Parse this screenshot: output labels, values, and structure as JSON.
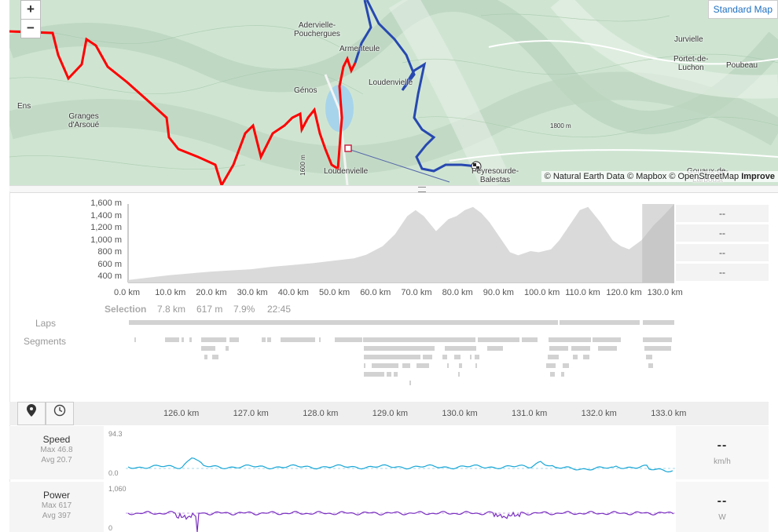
{
  "map": {
    "zoom_in": "+",
    "zoom_out": "−",
    "style_button": "Standard Map",
    "attribution": "© Natural Earth Data © Mapbox © OpenStreetMap",
    "attribution_link": "Improve",
    "places": [
      {
        "name": "Adervielle-\nPouchergues"
      },
      {
        "name": "Armenteule"
      },
      {
        "name": "Loudenvielle"
      },
      {
        "name": "Génos"
      },
      {
        "name": "Loudenvielle"
      },
      {
        "name": "Peyresourde-\nBalestas"
      },
      {
        "name": "Granges\nd'Arsoué"
      },
      {
        "name": "Ens"
      },
      {
        "name": "Jurvielle"
      },
      {
        "name": "Portet-de-\nLuchon"
      },
      {
        "name": "Poubeau"
      },
      {
        "name": "Gouaux-de-\nLarboust"
      },
      {
        "name": "1600 m"
      },
      {
        "name": "1800 m"
      }
    ]
  },
  "elevation": {
    "y_ticks": [
      "1,600 m",
      "1,400 m",
      "1,200 m",
      "1,000 m",
      "800 m",
      "600 m",
      "400 m"
    ],
    "x_ticks": [
      "0.0 km",
      "10.0 km",
      "20.0 km",
      "30.0 km",
      "40.0 km",
      "50.0 km",
      "60.0 km",
      "70.0 km",
      "80.0 km",
      "90.0 km",
      "100.0 km",
      "110.0 km",
      "120.0 km",
      "130.0 km"
    ],
    "side_values": [
      "--",
      "--",
      "--",
      "--"
    ],
    "selection": {
      "label": "Selection",
      "distance": "7.8 km",
      "elevation": "617 m",
      "grade": "7.9%",
      "time": "22:45"
    },
    "laps_label": "Laps",
    "segments_label": "Segments"
  },
  "chart_data": {
    "type": "area",
    "title": "",
    "xlabel": "",
    "ylabel": "",
    "ylim": [
      300,
      1600
    ],
    "xlim": [
      0,
      133
    ],
    "x": [
      0,
      5,
      10,
      15,
      20,
      25,
      30,
      35,
      40,
      45,
      50,
      55,
      58,
      62,
      65,
      68,
      70,
      72,
      75,
      78,
      80,
      82,
      84,
      86,
      88,
      90,
      93,
      95,
      98,
      100,
      103,
      105,
      108,
      110,
      112,
      115,
      118,
      120,
      122,
      125,
      128,
      130,
      133
    ],
    "values": [
      340,
      380,
      420,
      450,
      480,
      500,
      520,
      560,
      590,
      620,
      660,
      700,
      760,
      900,
      1100,
      1400,
      1500,
      1400,
      1150,
      1350,
      1400,
      1500,
      1550,
      1450,
      1300,
      1100,
      800,
      750,
      820,
      800,
      850,
      1000,
      1300,
      1500,
      1550,
      1300,
      1000,
      900,
      850,
      1000,
      1250,
      1380,
      1600
    ],
    "selection_range_km": [
      125.2,
      133
    ]
  },
  "toolbar": {
    "pin": "map-pin",
    "clock": "clock"
  },
  "detail": {
    "x_ticks": [
      "126.0 km",
      "127.0 km",
      "128.0 km",
      "129.0 km",
      "130.0 km",
      "131.0 km",
      "132.0 km",
      "133.0 km"
    ],
    "speed": {
      "name": "Speed",
      "max": "Max 46.8",
      "avg": "Avg 20.7",
      "ymax": "94.3",
      "ymin": "0.0",
      "value": "--",
      "unit": "km/h",
      "color": "#1aa7d6"
    },
    "power": {
      "name": "Power",
      "max": "Max 617",
      "avg": "Avg 397",
      "ymax": "1,060",
      "ymin": "0",
      "value": "--",
      "unit": "W",
      "color": "#7a2fc0"
    }
  }
}
